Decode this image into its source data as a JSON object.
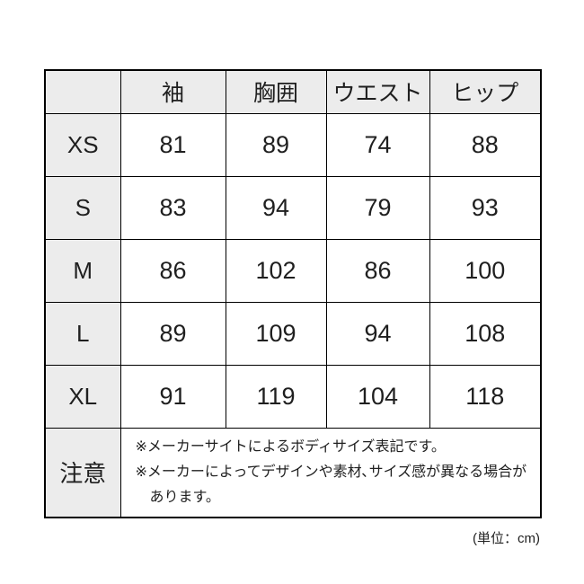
{
  "colors": {
    "background": "#ffffff",
    "header_cell_bg": "#ececec",
    "border": "#000000",
    "text": "#1f1f1f"
  },
  "chart_data": {
    "type": "table",
    "columns": [
      "",
      "袖",
      "胸囲",
      "ウエスト",
      "ヒップ"
    ],
    "rows": [
      {
        "label": "XS",
        "values": [
          81,
          89,
          74,
          88
        ]
      },
      {
        "label": "S",
        "values": [
          83,
          94,
          79,
          93
        ]
      },
      {
        "label": "M",
        "values": [
          86,
          102,
          86,
          100
        ]
      },
      {
        "label": "L",
        "values": [
          89,
          109,
          94,
          108
        ]
      },
      {
        "label": "XL",
        "values": [
          91,
          119,
          104,
          118
        ]
      }
    ],
    "note": {
      "label": "注意",
      "lines": [
        "※メーカーサイトによるボディサイズ表記です。",
        "※メーカーによってデザインや素材､サイズ感が異なる場合があります。"
      ]
    },
    "unit": "cm",
    "unit_note": "(単位：cm)"
  }
}
